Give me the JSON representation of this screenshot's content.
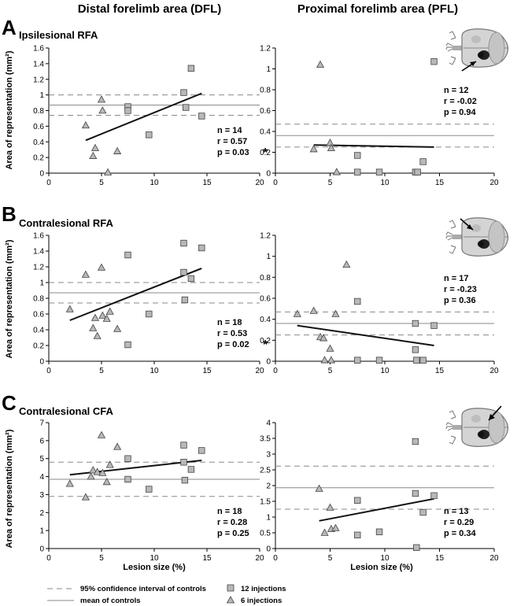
{
  "figure": {
    "col_titles": [
      "Distal forelimb area (DFL)",
      "Proximal forelimb area (PFL)"
    ],
    "ylabel": "Area of representation (mm²)",
    "xlabel": "Lesion size (%)",
    "legend": {
      "ci": "95% confidence interval of controls",
      "mean": "mean of controls",
      "squares": "12 injections",
      "triangles": "6 injections"
    },
    "colors": {
      "marker_fill": "#b8b8b8",
      "marker_stroke": "#444444",
      "reference_line": "#8a8a8a",
      "fit_line": "#111111"
    },
    "rows": [
      {
        "letter": "A",
        "title": "Ipsilesional RFA"
      },
      {
        "letter": "B",
        "title": "Contralesional RFA"
      },
      {
        "letter": "C",
        "title": "Contralesional CFA"
      }
    ]
  },
  "chart_data": [
    {
      "id": "A-DFL",
      "type": "scatter",
      "row": "A",
      "column": "DFL",
      "xlim": [
        0,
        20
      ],
      "xticks": [
        "0",
        "5",
        "10",
        "15",
        "20"
      ],
      "ylim": [
        0,
        1.6
      ],
      "yticks": [
        "0",
        "0.2",
        "0.4",
        "0.6",
        "0.8",
        "1",
        "1.2",
        "1.4",
        "1.6"
      ],
      "mean": 0.87,
      "ci": [
        0.74,
        1.0
      ],
      "fit": [
        [
          3.5,
          0.42
        ],
        [
          14.5,
          1.02
        ]
      ],
      "squares": [
        [
          7.5,
          0.85
        ],
        [
          7.5,
          0.8
        ],
        [
          9.5,
          0.49
        ],
        [
          12.8,
          1.03
        ],
        [
          13,
          0.84
        ],
        [
          13.5,
          1.34
        ],
        [
          14.5,
          0.73
        ]
      ],
      "triangles": [
        [
          3.5,
          0.61
        ],
        [
          4.2,
          0.22
        ],
        [
          4.4,
          0.32
        ],
        [
          5,
          0.94
        ],
        [
          5.1,
          0.8
        ],
        [
          5.6,
          0.01
        ],
        [
          6.5,
          0.28
        ]
      ],
      "stats": [
        "n = 14",
        "r = 0.57",
        "p =  0.03"
      ],
      "star": "*"
    },
    {
      "id": "A-PFL",
      "type": "scatter",
      "row": "A",
      "column": "PFL",
      "xlim": [
        0,
        20
      ],
      "xticks": [
        "0",
        "5",
        "10",
        "15",
        "20"
      ],
      "ylim": [
        0,
        1.2
      ],
      "yticks": [
        "0",
        "0.2",
        "0.4",
        "0.6",
        "0.8",
        "1",
        "1.2"
      ],
      "mean": 0.36,
      "ci": [
        0.25,
        0.47
      ],
      "fit": [
        [
          3.5,
          0.27
        ],
        [
          14.5,
          0.25
        ]
      ],
      "squares": [
        [
          7.5,
          0.17
        ],
        [
          7.5,
          0.01
        ],
        [
          9.5,
          0.01
        ],
        [
          12.8,
          0.01
        ],
        [
          13,
          0.01
        ],
        [
          13.5,
          0.11
        ],
        [
          14.5,
          1.07
        ]
      ],
      "triangles": [
        [
          3.5,
          0.23
        ],
        [
          4.1,
          1.04
        ],
        [
          5,
          0.29
        ],
        [
          5.1,
          0.24
        ],
        [
          5.6,
          0.01
        ]
      ],
      "stats": [
        "n = 12",
        "r = -0.02",
        "p = 0.94"
      ],
      "star": ""
    },
    {
      "id": "B-DFL",
      "type": "scatter",
      "row": "B",
      "column": "DFL",
      "xlim": [
        0,
        20
      ],
      "xticks": [
        "0",
        "5",
        "10",
        "15",
        "20"
      ],
      "ylim": [
        0,
        1.6
      ],
      "yticks": [
        "0",
        "0.2",
        "0.4",
        "0.6",
        "0.8",
        "1",
        "1.2",
        "1.4",
        "1.6"
      ],
      "mean": 0.87,
      "ci": [
        0.74,
        1.0
      ],
      "fit": [
        [
          2,
          0.52
        ],
        [
          14.5,
          1.18
        ]
      ],
      "squares": [
        [
          7.5,
          1.35
        ],
        [
          7.5,
          0.21
        ],
        [
          9.5,
          0.6
        ],
        [
          12.8,
          1.5
        ],
        [
          12.8,
          1.13
        ],
        [
          12.9,
          0.78
        ],
        [
          13.5,
          1.05
        ],
        [
          14.5,
          1.44
        ]
      ],
      "triangles": [
        [
          2,
          0.66
        ],
        [
          3.5,
          1.1
        ],
        [
          4.2,
          0.42
        ],
        [
          4.4,
          0.55
        ],
        [
          4.6,
          0.32
        ],
        [
          5,
          1.19
        ],
        [
          5.1,
          0.58
        ],
        [
          5.5,
          0.54
        ],
        [
          5.8,
          0.63
        ],
        [
          6.5,
          0.41
        ]
      ],
      "stats": [
        "n = 18",
        "r = 0.53",
        "p = 0.02"
      ],
      "star": "*"
    },
    {
      "id": "B-PFL",
      "type": "scatter",
      "row": "B",
      "column": "PFL",
      "xlim": [
        0,
        20
      ],
      "xticks": [
        "0",
        "5",
        "10",
        "15",
        "20"
      ],
      "ylim": [
        0,
        1.2
      ],
      "yticks": [
        "0",
        "0.2",
        "0.4",
        "0.6",
        "0.8",
        "1",
        "1.2"
      ],
      "mean": 0.36,
      "ci": [
        0.25,
        0.47
      ],
      "fit": [
        [
          2,
          0.34
        ],
        [
          14.5,
          0.15
        ]
      ],
      "squares": [
        [
          7.5,
          0.57
        ],
        [
          7.5,
          0.01
        ],
        [
          9.5,
          0.01
        ],
        [
          12.8,
          0.36
        ],
        [
          12.8,
          0.11
        ],
        [
          12.9,
          0.01
        ],
        [
          13.5,
          0.01
        ],
        [
          14.5,
          0.34
        ]
      ],
      "triangles": [
        [
          2,
          0.45
        ],
        [
          3.5,
          0.48
        ],
        [
          4.1,
          0.23
        ],
        [
          4.4,
          0.22
        ],
        [
          4.5,
          0.01
        ],
        [
          5,
          0.12
        ],
        [
          5.1,
          0.01
        ],
        [
          5.5,
          0.45
        ],
        [
          6.5,
          0.92
        ]
      ],
      "stats": [
        "n = 17",
        "r = -0.23",
        "p = 0.36"
      ],
      "star": ""
    },
    {
      "id": "C-DFL",
      "type": "scatter",
      "row": "C",
      "column": "DFL",
      "xlim": [
        0,
        20
      ],
      "xticks": [
        "0",
        "5",
        "10",
        "15",
        "20"
      ],
      "ylim": [
        0,
        7
      ],
      "yticks": [
        "0",
        "1",
        "2",
        "3",
        "4",
        "5",
        "6",
        "7"
      ],
      "mean": 3.85,
      "ci": [
        2.9,
        4.8
      ],
      "fit": [
        [
          2,
          4.1
        ],
        [
          14.5,
          4.9
        ]
      ],
      "squares": [
        [
          7.5,
          5.0
        ],
        [
          7.5,
          3.85
        ],
        [
          9.5,
          3.3
        ],
        [
          12.8,
          5.75
        ],
        [
          12.8,
          4.8
        ],
        [
          12.9,
          3.8
        ],
        [
          13.5,
          4.4
        ],
        [
          14.5,
          5.45
        ]
      ],
      "triangles": [
        [
          2,
          3.6
        ],
        [
          3.5,
          2.85
        ],
        [
          4,
          4.0
        ],
        [
          4.2,
          4.35
        ],
        [
          4.6,
          4.25
        ],
        [
          5,
          6.3
        ],
        [
          5.1,
          4.2
        ],
        [
          5.5,
          3.7
        ],
        [
          5.8,
          4.65
        ],
        [
          6.5,
          5.65
        ]
      ],
      "stats": [
        "n = 18",
        "r = 0.28",
        "p = 0.25"
      ],
      "star": ""
    },
    {
      "id": "C-PFL",
      "type": "scatter",
      "row": "C",
      "column": "PFL",
      "xlim": [
        0,
        20
      ],
      "xticks": [
        "0",
        "5",
        "10",
        "15",
        "20"
      ],
      "ylim": [
        0,
        4
      ],
      "yticks": [
        "0",
        "0.5",
        "1",
        "1.5",
        "2",
        "2.5",
        "3",
        "3.5",
        "4"
      ],
      "mean": 1.93,
      "ci": [
        1.25,
        2.62
      ],
      "fit": [
        [
          4,
          0.88
        ],
        [
          14.5,
          1.58
        ]
      ],
      "squares": [
        [
          7.5,
          1.53
        ],
        [
          7.5,
          0.43
        ],
        [
          9.5,
          0.53
        ],
        [
          12.8,
          3.4
        ],
        [
          12.8,
          1.75
        ],
        [
          12.9,
          0.03
        ],
        [
          13.5,
          1.15
        ],
        [
          14.5,
          1.68
        ]
      ],
      "triangles": [
        [
          4,
          1.9
        ],
        [
          4.5,
          0.5
        ],
        [
          5,
          1.3
        ],
        [
          5.1,
          0.62
        ],
        [
          5.5,
          0.65
        ]
      ],
      "stats": [
        "n = 13",
        "r = 0.29",
        "p = 0.34"
      ],
      "star": ""
    }
  ]
}
